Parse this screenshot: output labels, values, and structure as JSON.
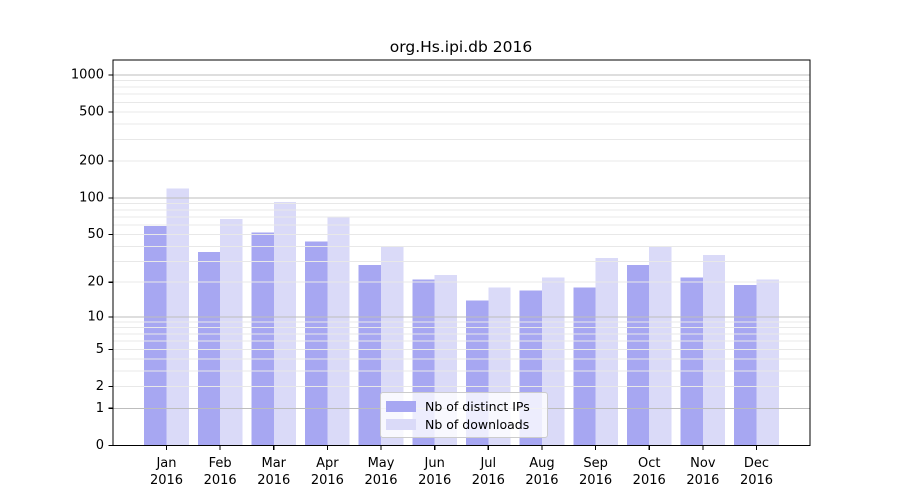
{
  "title": "org.Hs.ipi.db 2016",
  "chart_data": {
    "type": "bar",
    "title": "org.Hs.ipi.db 2016",
    "categories": [
      "Jan",
      "Feb",
      "Mar",
      "Apr",
      "May",
      "Jun",
      "Jul",
      "Aug",
      "Sep",
      "Oct",
      "Nov",
      "Dec"
    ],
    "x_year": "2016",
    "series": [
      {
        "name": "Nb of distinct IPs",
        "color": "#a7a7f2",
        "values": [
          59,
          36,
          52,
          44,
          28,
          21,
          14,
          17,
          18,
          28,
          22,
          19
        ]
      },
      {
        "name": "Nb of downloads",
        "color": "#dadaf8",
        "values": [
          120,
          67,
          93,
          69,
          40,
          23,
          18,
          22,
          32,
          40,
          34,
          21
        ]
      }
    ],
    "y_ticks": [
      1000,
      500,
      200,
      100,
      50,
      20,
      10,
      5,
      2,
      1,
      0
    ],
    "y_scale": "log10(1+x)",
    "ylim": [
      0,
      1300
    ],
    "grid": true,
    "legend_position": "lower center",
    "colors": {
      "axis": "#000000",
      "grid_major": "#bdbdbd",
      "grid_minor": "#e8e8e8",
      "legend_border": "#cccccc"
    }
  }
}
